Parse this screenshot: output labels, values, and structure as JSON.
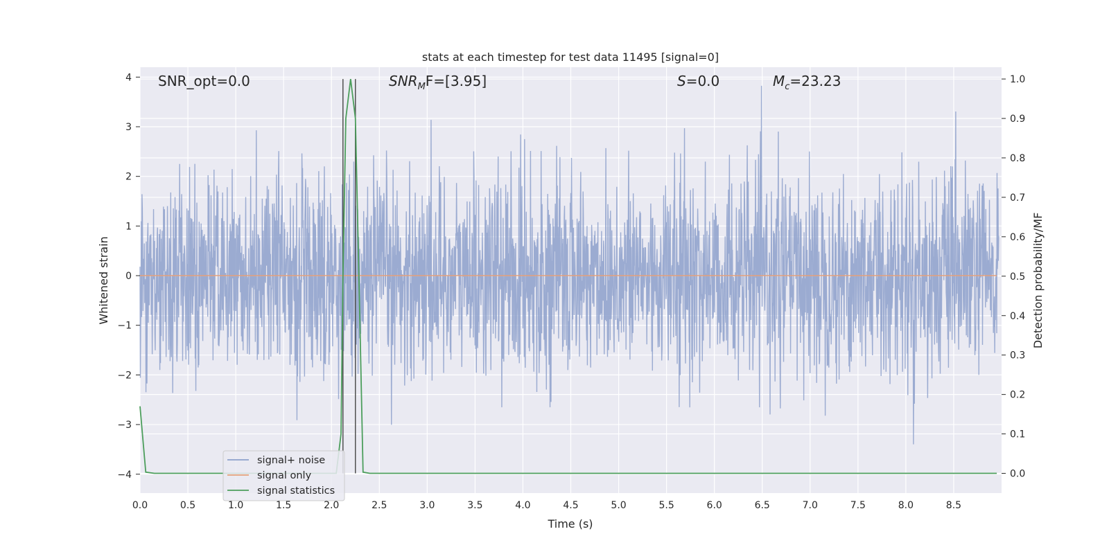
{
  "chart_data": {
    "type": "line",
    "title": "stats at each timestep for test data 11495 [signal=0]",
    "xlabel": "Time (s)",
    "ylabel_left": "Whitened strain",
    "ylabel_right": "Detection probability/MF",
    "xlim": [
      0.0,
      9.0
    ],
    "ylim_left": [
      -4.38,
      4.2
    ],
    "ylim_right": [
      -0.05,
      1.03
    ],
    "xticks": [
      "0.0",
      "0.5",
      "1.0",
      "1.5",
      "2.0",
      "2.5",
      "3.0",
      "3.5",
      "4.0",
      "4.5",
      "5.0",
      "5.5",
      "6.0",
      "6.5",
      "7.0",
      "7.5",
      "8.0",
      "8.5"
    ],
    "yticks_left": [
      "4",
      "3",
      "2",
      "1",
      "0",
      "−1",
      "−2",
      "−3",
      "−4"
    ],
    "yticks_right": [
      "1.0",
      "0.9",
      "0.8",
      "0.7",
      "0.6",
      "0.5",
      "0.4",
      "0.3",
      "0.2",
      "0.1",
      "0.0"
    ],
    "grid": true,
    "legend_placement": "lower-left",
    "annotations": {
      "snr_opt": "SNR_opt=0.0",
      "snr_mf_base": "SNR",
      "snr_mf_sub": "M",
      "snr_mf_rest": "F=[3.95]",
      "s_italic": "S",
      "s_rest": "=0.0",
      "mc_base": "M",
      "mc_sub": "c",
      "mc_rest": "=23.23"
    },
    "vlines_x": [
      2.12,
      2.25
    ],
    "series": [
      {
        "name": "signal+ noise",
        "color": "#8da0cb",
        "axis": "left",
        "description_values": "whitened noise sampled across 0–9 s, amplitude roughly within ±3.8"
      },
      {
        "name": "signal only",
        "color": "#e5a07a",
        "axis": "left",
        "y": 0.0
      },
      {
        "name": "signal statistics",
        "color": "#4c9e5c",
        "axis": "right",
        "x": [
          0.0,
          0.06,
          0.15,
          0.25,
          0.5,
          1.0,
          1.5,
          2.0,
          2.05,
          2.1,
          2.12,
          2.15,
          2.2,
          2.25,
          2.3,
          2.33,
          2.4,
          2.5,
          3.0,
          4.0,
          5.0,
          6.0,
          7.0,
          8.0,
          8.95
        ],
        "y": [
          0.17,
          0.003,
          0.0,
          0.0,
          0.0,
          0.0,
          0.0,
          0.0,
          0.0,
          0.1,
          0.5,
          0.9,
          1.0,
          0.9,
          0.35,
          0.003,
          0.0,
          0.0,
          0.0,
          0.0,
          0.0,
          0.0,
          0.0,
          0.0,
          0.0
        ]
      }
    ],
    "colors": {
      "plot_bg": "#eaeaf2",
      "grid": "#ffffff",
      "vline": "#505050"
    }
  }
}
